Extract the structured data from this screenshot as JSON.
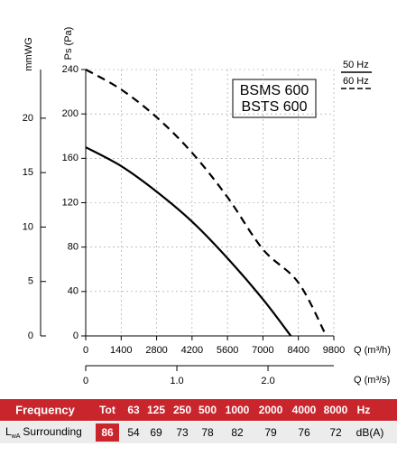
{
  "chart_data": {
    "type": "line",
    "annotations": [
      "BSMS 600",
      "BSTS 600"
    ],
    "xlabel": "Q (m³/h)",
    "x2label": "Q (m³/s)",
    "ylabel": "Ps (Pa)",
    "y2label": "mmWG",
    "xlim": [
      0,
      9800
    ],
    "xticks": [
      0,
      1400,
      2800,
      4200,
      5600,
      7000,
      8400,
      9800
    ],
    "x2lim": [
      0,
      2.722
    ],
    "x2ticks": [
      0,
      {
        "value": 1,
        "label": "1.0"
      },
      {
        "value": 2,
        "label": "2.0"
      }
    ],
    "ylim": [
      0,
      240
    ],
    "yticks": [
      0,
      40,
      80,
      120,
      160,
      200,
      240
    ],
    "y2lim": [
      0,
      24.47
    ],
    "y2ticks": [
      0,
      5,
      10,
      15,
      20
    ],
    "grid": true,
    "series": [
      {
        "name": "50 Hz",
        "color": "#000000",
        "dash": false,
        "x": [
          0,
          1400,
          2800,
          4200,
          5600,
          7000,
          8100
        ],
        "values": [
          170,
          153,
          130,
          103,
          70,
          33,
          0
        ]
      },
      {
        "name": "60 Hz",
        "color": "#000000",
        "dash": true,
        "x": [
          0,
          1400,
          2800,
          4200,
          5600,
          7000,
          8400,
          9500
        ],
        "values": [
          240,
          222,
          197,
          165,
          125,
          78,
          48,
          0
        ]
      }
    ]
  },
  "table": {
    "header": [
      "Frequency",
      "Tot",
      "63",
      "125",
      "250",
      "500",
      "1000",
      "2000",
      "4000",
      "8000",
      "Hz"
    ],
    "row": {
      "label_main": "L",
      "label_sub": "wA",
      "label_rest": "Surrounding",
      "cells": [
        "86",
        "54",
        "69",
        "73",
        "78",
        "82",
        "79",
        "76",
        "72",
        "dB(A)"
      ]
    }
  }
}
